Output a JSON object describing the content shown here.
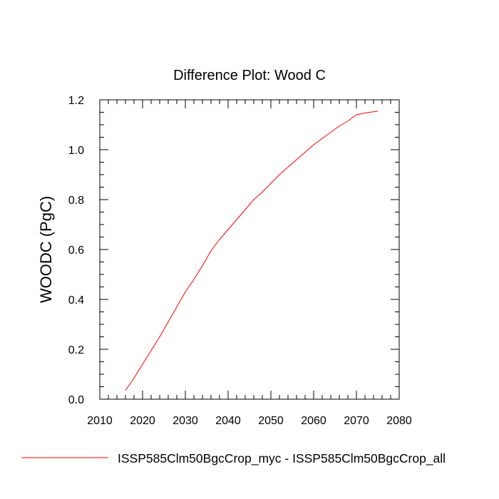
{
  "chart_data": {
    "type": "line",
    "title": "Difference Plot: Wood C",
    "xlabel": "",
    "ylabel": "WOODC  (PgC)",
    "xlim": [
      2010,
      2080
    ],
    "ylim": [
      0.0,
      1.2
    ],
    "x_ticks": [
      2010,
      2020,
      2030,
      2040,
      2050,
      2060,
      2070,
      2080
    ],
    "x_tick_labels": [
      "2010",
      "2020",
      "2030",
      "2040",
      "2050",
      "2060",
      "2070",
      "2080"
    ],
    "y_ticks": [
      0.0,
      0.2,
      0.4,
      0.6,
      0.8,
      1.0,
      1.2
    ],
    "y_tick_labels": [
      "0.0",
      "0.2",
      "0.4",
      "0.6",
      "0.8",
      "1.0",
      "1.2"
    ],
    "grid": false,
    "legend_position": "bottom",
    "series": [
      {
        "name": "ISSP585Clm50BgcCrop_myc - ISSP585Clm50BgcCrop_all",
        "color": "#ff0000",
        "x": [
          2016,
          2018,
          2020,
          2022,
          2024,
          2026,
          2028,
          2030,
          2032,
          2034,
          2036,
          2038,
          2040,
          2042,
          2044,
          2046,
          2048,
          2050,
          2052,
          2054,
          2056,
          2058,
          2060,
          2062,
          2064,
          2066,
          2068,
          2070,
          2072,
          2074,
          2075
        ],
        "y": [
          0.035,
          0.085,
          0.14,
          0.195,
          0.25,
          0.31,
          0.37,
          0.43,
          0.48,
          0.535,
          0.595,
          0.64,
          0.68,
          0.72,
          0.76,
          0.8,
          0.83,
          0.865,
          0.9,
          0.93,
          0.96,
          0.99,
          1.02,
          1.045,
          1.07,
          1.095,
          1.115,
          1.14,
          1.147,
          1.152,
          1.155
        ]
      }
    ]
  }
}
